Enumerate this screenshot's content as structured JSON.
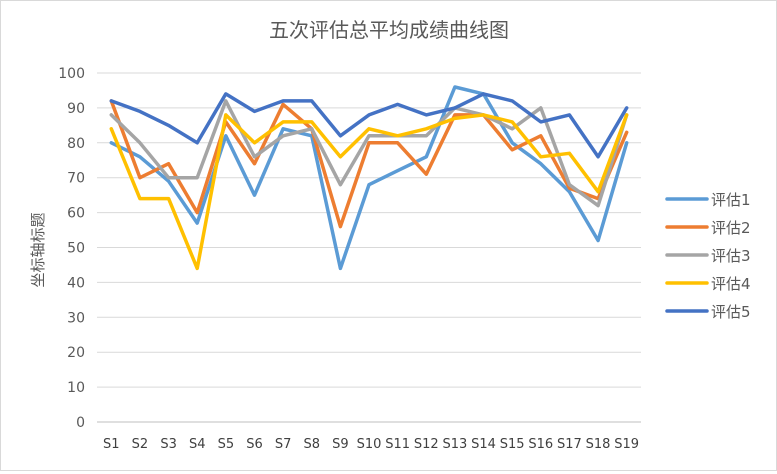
{
  "chart_data": {
    "type": "line",
    "title": "五次评估总平均成绩曲线图",
    "xlabel": "",
    "ylabel": "坐标轴标题",
    "ylim": [
      0,
      100
    ],
    "yticks": [
      0,
      10,
      20,
      30,
      40,
      50,
      60,
      70,
      80,
      90,
      100
    ],
    "grid": true,
    "legend_position": "right",
    "categories": [
      "S1",
      "S2",
      "S3",
      "S4",
      "S5",
      "S6",
      "S7",
      "S8",
      "S9",
      "S10",
      "S11",
      "S12",
      "S13",
      "S14",
      "S15",
      "S16",
      "S17",
      "S18",
      "S19"
    ],
    "series": [
      {
        "name": "评估1",
        "color": "#5b9bd5",
        "values": [
          80,
          76,
          69,
          57,
          82,
          65,
          84,
          82,
          44,
          68,
          72,
          76,
          96,
          94,
          80,
          74,
          66,
          52,
          80
        ]
      },
      {
        "name": "评估2",
        "color": "#ed7d31",
        "values": [
          92,
          70,
          74,
          60,
          86,
          74,
          91,
          84,
          56,
          80,
          80,
          71,
          88,
          88,
          78,
          82,
          67,
          64,
          83
        ]
      },
      {
        "name": "评估3",
        "color": "#a5a5a5",
        "values": [
          88,
          80,
          70,
          70,
          92,
          76,
          82,
          84,
          68,
          82,
          82,
          82,
          90,
          88,
          84,
          90,
          68,
          62,
          88
        ]
      },
      {
        "name": "评估4",
        "color": "#ffc000",
        "values": [
          84,
          64,
          64,
          44,
          88,
          80,
          86,
          86,
          76,
          84,
          82,
          84,
          87,
          88,
          86,
          76,
          77,
          66,
          88
        ]
      },
      {
        "name": "评估5",
        "color": "#4472c4",
        "values": [
          92,
          89,
          85,
          80,
          94,
          89,
          92,
          92,
          82,
          88,
          91,
          88,
          90,
          94,
          92,
          86,
          88,
          76,
          90
        ]
      }
    ]
  }
}
